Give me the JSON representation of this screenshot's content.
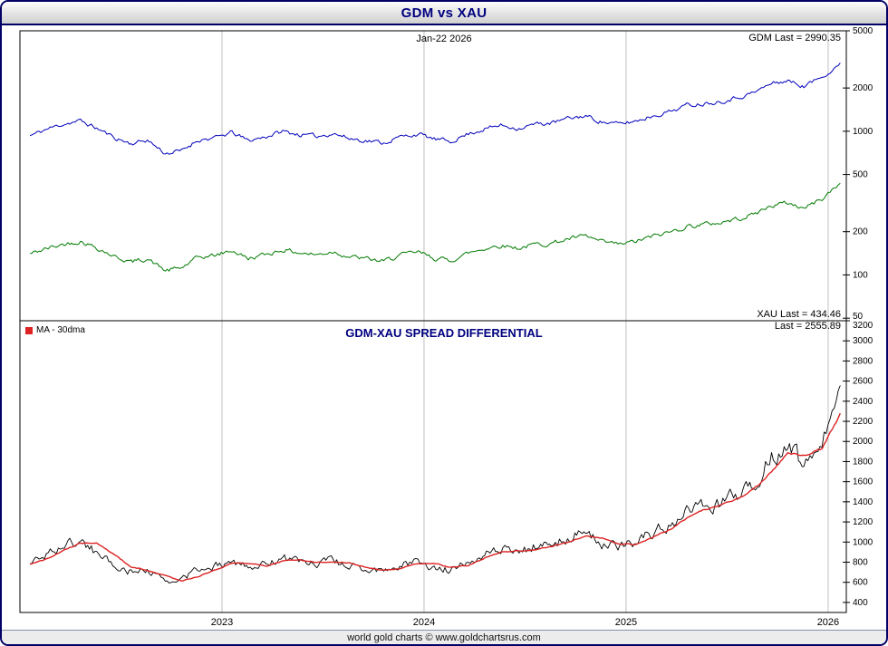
{
  "window": {
    "title": "GDM vs XAU",
    "footer": "world gold charts © www.goldchartsrus.com"
  },
  "annotations": {
    "date_label": "Jan-22  2026",
    "gdm_last": "GDM Last = 2990.35",
    "xau_last": "XAU Last = 434.46",
    "spread_last": "Last = 2555.89",
    "spread_title": "GDM-XAU SPREAD DIFFERENTIAL",
    "legend_ma": "MA - 30dma"
  },
  "colors": {
    "gdm": "#0000bb",
    "xau": "#007a00",
    "spread": "#000000",
    "ma": "#dd2222",
    "title": "#000080",
    "grid": "#c0c0c0"
  },
  "chart_data": [
    {
      "type": "line",
      "title": "GDM vs XAU",
      "y_scale": "log",
      "ylim": [
        48,
        5000
      ],
      "y_ticks": [
        5000,
        2000,
        1000,
        500,
        200,
        100,
        50
      ],
      "x_ticks": [
        "2023",
        "2024",
        "2025",
        "2026"
      ],
      "x_unit": "decimal year",
      "x_range": [
        2022.0,
        2026.09
      ],
      "legend_position": "none",
      "grid": "vertical-year-lines",
      "x": [
        2022.05,
        2022.13,
        2022.22,
        2022.3,
        2022.38,
        2022.47,
        2022.55,
        2022.63,
        2022.72,
        2022.8,
        2022.88,
        2022.97,
        2023.05,
        2023.13,
        2023.22,
        2023.3,
        2023.38,
        2023.47,
        2023.55,
        2023.63,
        2023.72,
        2023.8,
        2023.88,
        2023.97,
        2024.05,
        2024.13,
        2024.22,
        2024.3,
        2024.38,
        2024.47,
        2024.55,
        2024.63,
        2024.72,
        2024.8,
        2024.88,
        2024.97,
        2025.05,
        2025.13,
        2025.22,
        2025.3,
        2025.38,
        2025.47,
        2025.55,
        2025.63,
        2025.72,
        2025.8,
        2025.88,
        2025.97,
        2026.06
      ],
      "series": [
        {
          "name": "GDM",
          "color_key": "gdm",
          "last": 2990.35,
          "values": [
            930,
            1030,
            1130,
            1180,
            1050,
            900,
            820,
            870,
            700,
            730,
            870,
            900,
            980,
            860,
            920,
            1000,
            950,
            920,
            970,
            890,
            860,
            830,
            910,
            960,
            880,
            850,
            960,
            1040,
            1100,
            1050,
            1120,
            1140,
            1230,
            1280,
            1160,
            1120,
            1180,
            1280,
            1380,
            1520,
            1560,
            1620,
            1720,
            1850,
            2150,
            2250,
            2050,
            2400,
            2990.35
          ]
        },
        {
          "name": "XAU",
          "color_key": "xau",
          "last": 434.46,
          "values": [
            140,
            152,
            164,
            172,
            155,
            134,
            123,
            130,
            107,
            112,
            132,
            137,
            148,
            130,
            139,
            150,
            143,
            138,
            146,
            134,
            129,
            124,
            137,
            144,
            131,
            126,
            142,
            153,
            161,
            154,
            163,
            166,
            179,
            186,
            169,
            163,
            171,
            185,
            199,
            218,
            224,
            232,
            246,
            264,
            304,
            318,
            291,
            340,
            434.46
          ]
        }
      ]
    },
    {
      "type": "line",
      "title": "GDM-XAU SPREAD DIFFERENTIAL",
      "y_scale": "linear",
      "ylim": [
        300,
        3200
      ],
      "y_ticks": [
        3200,
        3000,
        2800,
        2600,
        2400,
        2200,
        2000,
        1800,
        1600,
        1400,
        1200,
        1000,
        800,
        600,
        400
      ],
      "x_ticks": [
        "2023",
        "2024",
        "2025",
        "2026"
      ],
      "x_unit": "decimal year",
      "x_range": [
        2022.0,
        2026.09
      ],
      "legend_position": "top-left",
      "grid": "vertical-year-lines",
      "x": [
        2022.05,
        2022.13,
        2022.22,
        2022.3,
        2022.38,
        2022.47,
        2022.55,
        2022.63,
        2022.72,
        2022.8,
        2022.88,
        2022.97,
        2023.05,
        2023.13,
        2023.22,
        2023.3,
        2023.38,
        2023.47,
        2023.55,
        2023.63,
        2023.72,
        2023.8,
        2023.88,
        2023.97,
        2024.05,
        2024.13,
        2024.22,
        2024.3,
        2024.38,
        2024.47,
        2024.55,
        2024.63,
        2024.72,
        2024.8,
        2024.88,
        2024.97,
        2025.05,
        2025.13,
        2025.22,
        2025.3,
        2025.38,
        2025.47,
        2025.55,
        2025.63,
        2025.72,
        2025.8,
        2025.88,
        2025.97,
        2026.06
      ],
      "series": [
        {
          "name": "GDM-XAU Spread",
          "color_key": "spread",
          "last": 2555.89,
          "values": [
            790,
            878,
            966,
            1008,
            895,
            766,
            697,
            740,
            593,
            618,
            738,
            763,
            832,
            730,
            781,
            850,
            807,
            782,
            824,
            756,
            731,
            706,
            773,
            816,
            749,
            724,
            818,
            887,
            939,
            896,
            957,
            974,
            1051,
            1094,
            991,
            957,
            1009,
            1095,
            1181,
            1302,
            1336,
            1388,
            1474,
            1586,
            1846,
            1932,
            1759,
            2060,
            2555.89
          ]
        },
        {
          "name": "MA - 30dma",
          "color_key": "ma",
          "last": 2280,
          "values": [
            780,
            830,
            920,
            990,
            990,
            870,
            755,
            720,
            665,
            615,
            655,
            725,
            790,
            788,
            762,
            812,
            826,
            797,
            801,
            792,
            748,
            718,
            736,
            788,
            790,
            745,
            768,
            840,
            902,
            915,
            922,
            958,
            1008,
            1062,
            1042,
            978,
            975,
            1042,
            1130,
            1238,
            1318,
            1362,
            1428,
            1520,
            1700,
            1878,
            1862,
            1930,
            2280
          ]
        }
      ]
    }
  ]
}
